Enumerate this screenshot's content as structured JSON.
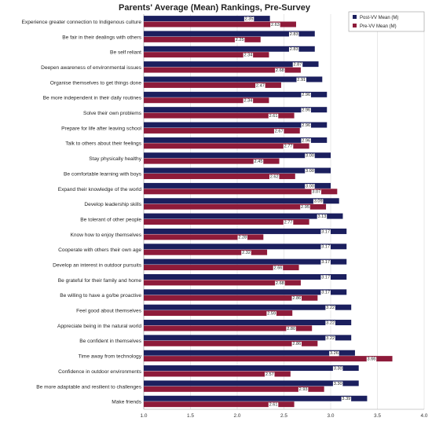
{
  "chart_data": {
    "type": "bar",
    "orientation": "horizontal",
    "title": "Parents' Average (Mean) Rankings, Pre-Survey",
    "xlim": [
      1.0,
      4.0
    ],
    "xticks": [
      "1.0",
      "1.5",
      "2.0",
      "2.5",
      "3.0",
      "3.5",
      "4.0"
    ],
    "grid": true,
    "legend_position": "top-right",
    "colors": {
      "post": "#1b1f5e",
      "pre": "#8e1b3a"
    },
    "categories": [
      "Experience greater connection to Indigenous culture",
      "Be fair in their dealings with others",
      "Be self reliant",
      "Deepen awareness of environmental issues",
      "Organise themselves to get things done",
      "Be more independent in their daily routines",
      "Solve their own problems",
      "Prepare for life after leaving school",
      "Talk to others about their feelings",
      "Stay physically healthy",
      "Be comfortable learning with boys",
      "Expand their knowledge of the world",
      "Develop leadership skills",
      "Be tolerant of other people",
      "Know how to enjoy themselves",
      "Cooperate with others their own age",
      "Develop an interest in outdoor pursuits",
      "Be grateful for their family and home",
      "Be willing to have a go/be proactive",
      "Feel good about themselves",
      "Appreciate being in the natural world",
      "Be confident in themselves",
      "Time away from technology",
      "Confidence in outdoor environments",
      "Be more adaptable and resilient to challenges",
      "Make friends"
    ],
    "series": [
      {
        "name": "Post-VV Mean (M)",
        "labels": [
          "2.35",
          "2.83",
          "2.83",
          "2.87",
          "2.91",
          "2.96",
          "2.96",
          "2.96",
          "2.96",
          "3.00",
          "3.00",
          "3.00",
          "3.09",
          "3.13",
          "3.17",
          "3.17",
          "3.17",
          "3.17",
          "3.17",
          "3.22",
          "3.22",
          "3.22",
          "3.26",
          "3.30",
          "3.30",
          "3.39"
        ],
        "values": [
          2.35,
          2.83,
          2.83,
          2.87,
          2.91,
          2.96,
          2.96,
          2.96,
          2.96,
          3.0,
          3.0,
          3.0,
          3.09,
          3.13,
          3.17,
          3.17,
          3.17,
          3.17,
          3.17,
          3.22,
          3.22,
          3.22,
          3.26,
          3.3,
          3.3,
          3.39
        ]
      },
      {
        "name": "Pre-VV Mean (M)",
        "labels": [
          "2.63",
          "2.25",
          "2.34",
          "2.68",
          "2.47",
          "2.34",
          "2.61",
          "2.67",
          "2.77",
          "2.45",
          "2.62",
          "3.07",
          "2.95",
          "2.77",
          "2.28",
          "2.32",
          "2.66",
          "2.68",
          "2.86",
          "2.59",
          "2.80",
          "2.86",
          "3.66",
          "2.57",
          "2.93",
          "2.61"
        ],
        "values": [
          2.63,
          2.25,
          2.34,
          2.68,
          2.47,
          2.34,
          2.61,
          2.67,
          2.77,
          2.45,
          2.62,
          3.07,
          2.95,
          2.77,
          2.28,
          2.32,
          2.66,
          2.68,
          2.86,
          2.59,
          2.8,
          2.86,
          3.66,
          2.57,
          2.93,
          2.61
        ]
      }
    ]
  }
}
